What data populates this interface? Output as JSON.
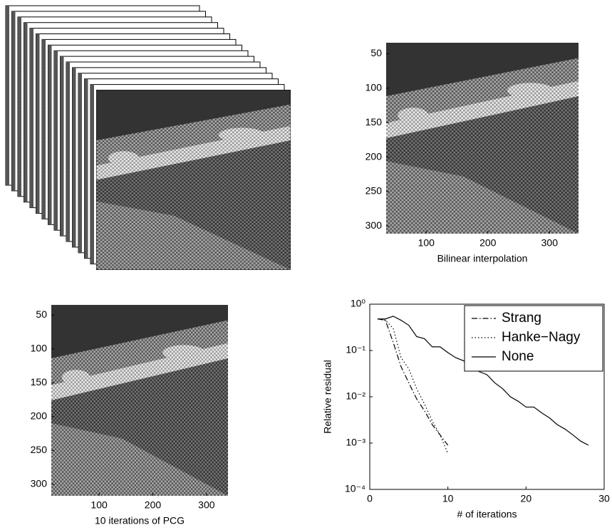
{
  "chart_data": [
    {
      "type": "image",
      "xlabel": "Bilinear interpolation",
      "xlim": [
        35,
        347
      ],
      "ylim": [
        34,
        311
      ],
      "yreverse": true,
      "xticks": [
        100,
        200,
        300
      ],
      "yticks": [
        50,
        100,
        150,
        200,
        250,
        300
      ]
    },
    {
      "type": "image",
      "xlabel": "10 iterations of PCG",
      "xlim": [
        11,
        340
      ],
      "ylim": [
        35,
        317
      ],
      "yreverse": true,
      "xticks": [
        100,
        200,
        300
      ],
      "yticks": [
        50,
        100,
        150,
        200,
        250,
        300
      ]
    },
    {
      "type": "line",
      "xlabel": "# of iterations",
      "ylabel": "Relative residual",
      "log_y": true,
      "xlim": [
        0,
        30
      ],
      "ylim": [
        0.0001,
        1
      ],
      "xticks": [
        0,
        10,
        20,
        30
      ],
      "yticks": [
        {
          "value": 0.0001,
          "label": "10⁻⁴"
        },
        {
          "value": 0.001,
          "label": "10⁻³"
        },
        {
          "value": 0.01,
          "label": "10⁻²"
        },
        {
          "value": 0.1,
          "label": "10⁻¹"
        },
        {
          "value": 1,
          "label": "10⁰"
        }
      ],
      "legend": "upper right",
      "series": [
        {
          "name": "Strang",
          "color": "#000000",
          "dash": "dashdot",
          "x": [
            1,
            2,
            3,
            4,
            5,
            6,
            7,
            8,
            9,
            10
          ],
          "values": [
            0.48,
            0.45,
            0.15,
            0.045,
            0.02,
            0.009,
            0.005,
            0.0025,
            0.0015,
            0.0009
          ]
        },
        {
          "name": "Hanke−Nagy",
          "color": "#000000",
          "dash": "dotted",
          "x": [
            1,
            2,
            3,
            4,
            5,
            6,
            7,
            8,
            9,
            10
          ],
          "values": [
            0.48,
            0.45,
            0.3,
            0.07,
            0.04,
            0.015,
            0.007,
            0.003,
            0.0015,
            0.0006
          ]
        },
        {
          "name": "None",
          "color": "#000000",
          "dash": "solid",
          "x": [
            1,
            2,
            3,
            4,
            5,
            6,
            7,
            8,
            9,
            10,
            11,
            12,
            13,
            14,
            15,
            16,
            17,
            18,
            19,
            20,
            21,
            22,
            23,
            24,
            25,
            26,
            27,
            28
          ],
          "values": [
            0.48,
            0.48,
            0.55,
            0.45,
            0.35,
            0.2,
            0.18,
            0.12,
            0.12,
            0.09,
            0.07,
            0.06,
            0.045,
            0.035,
            0.03,
            0.02,
            0.015,
            0.01,
            0.008,
            0.006,
            0.006,
            0.0045,
            0.0035,
            0.0025,
            0.002,
            0.0015,
            0.0011,
            0.0009
          ]
        }
      ]
    }
  ]
}
